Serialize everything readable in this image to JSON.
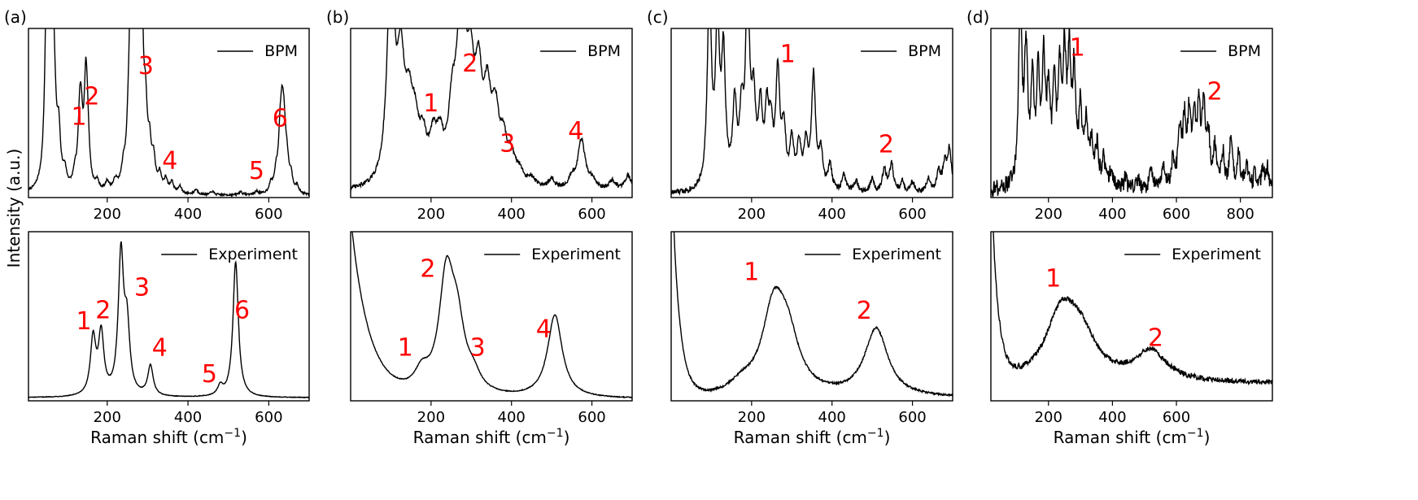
{
  "figure": {
    "ylabel": "Intensity (a.u.)",
    "xlabel_main": "Raman shift (cm",
    "xlabel_sup": "−1",
    "xlabel_close": ")"
  },
  "chart_data": [
    {
      "panel": "(a)",
      "type": "line",
      "xlim": [
        5,
        700
      ],
      "top": {
        "legend": "BPM",
        "legend_position": "top-right",
        "xticks": [
          200,
          400,
          600
        ],
        "peaks": [
          [
            50,
            9
          ],
          [
            58,
            16
          ],
          [
            64,
            7
          ],
          [
            70,
            2.2
          ],
          [
            80,
            2.8
          ],
          [
            95,
            0.9
          ],
          [
            120,
            0.8
          ],
          [
            132,
            3.8
          ],
          [
            136,
            2.5
          ],
          [
            147,
            6.0
          ],
          [
            152,
            2.2
          ],
          [
            175,
            0.5
          ],
          [
            200,
            0.5
          ],
          [
            220,
            0.5
          ],
          [
            240,
            0.8
          ],
          [
            252,
            1.2
          ],
          [
            260,
            12
          ],
          [
            264,
            8.5
          ],
          [
            272,
            7.5
          ],
          [
            280,
            9.5
          ],
          [
            286,
            6.0
          ],
          [
            295,
            3.5
          ],
          [
            305,
            2.0
          ],
          [
            315,
            1.5
          ],
          [
            330,
            0.9
          ],
          [
            345,
            0.7
          ],
          [
            360,
            0.6
          ],
          [
            380,
            0.4
          ],
          [
            420,
            0.3
          ],
          [
            460,
            0.2
          ],
          [
            530,
            0.2
          ],
          [
            570,
            0.2
          ],
          [
            605,
            0.5
          ],
          [
            618,
            1.0
          ],
          [
            628,
            2.5
          ],
          [
            633,
            3.5
          ],
          [
            638,
            2.8
          ],
          [
            645,
            1.5
          ],
          [
            655,
            0.9
          ],
          [
            670,
            0.4
          ]
        ],
        "width": 5,
        "baseline": 0.1,
        "noise": 0.06,
        "ylim": [
          0,
          10
        ],
        "labels": [
          {
            "text": "1",
            "x": 130,
            "y": 4.3
          },
          {
            "text": "2",
            "x": 162,
            "y": 5.5
          },
          {
            "text": "3",
            "x": 296,
            "y": 7.3
          },
          {
            "text": "4",
            "x": 355,
            "y": 1.7
          },
          {
            "text": "5",
            "x": 570,
            "y": 1.1
          },
          {
            "text": "6",
            "x": 628,
            "y": 4.2
          }
        ]
      },
      "bottom": {
        "legend": "Experiment",
        "legend_position": "top-right",
        "xticks": [
          200,
          400,
          600
        ],
        "peaks": [
          [
            165,
            1.5
          ],
          [
            185,
            1.6
          ],
          [
            234,
            3.7
          ],
          [
            249,
            1.7
          ],
          [
            307,
            0.8
          ],
          [
            480,
            0.25
          ],
          [
            518,
            3.6
          ]
        ],
        "width": 8,
        "baseline": 0.08,
        "noise": 0.008,
        "ylim": [
          0,
          4.5
        ],
        "labels": [
          {
            "text": "1",
            "x": 142,
            "y": 1.9
          },
          {
            "text": "2",
            "x": 190,
            "y": 2.2
          },
          {
            "text": "3",
            "x": 286,
            "y": 2.8
          },
          {
            "text": "4",
            "x": 330,
            "y": 1.2
          },
          {
            "text": "5",
            "x": 453,
            "y": 0.5
          },
          {
            "text": "6",
            "x": 534,
            "y": 2.2
          }
        ]
      }
    },
    {
      "panel": "(b)",
      "type": "line",
      "xlim": [
        0,
        700
      ],
      "top": {
        "legend": "BPM",
        "legend_position": "top-right",
        "xticks": [
          200,
          400,
          600
        ],
        "peaks": [
          [
            100,
            7
          ],
          [
            125,
            3.5
          ],
          [
            145,
            2.0
          ],
          [
            160,
            1.5
          ],
          [
            180,
            1.2
          ],
          [
            205,
            1.2
          ],
          [
            222,
            1.2
          ],
          [
            252,
            2.0
          ],
          [
            268,
            2.5
          ],
          [
            280,
            3.5
          ],
          [
            298,
            3.0
          ],
          [
            318,
            3.0
          ],
          [
            340,
            2.5
          ],
          [
            360,
            2.0
          ],
          [
            380,
            1.2
          ],
          [
            400,
            0.8
          ],
          [
            420,
            0.4
          ],
          [
            450,
            0.3
          ],
          [
            500,
            0.3
          ],
          [
            550,
            0.3
          ],
          [
            574,
            1.6
          ],
          [
            600,
            0.3
          ],
          [
            650,
            0.3
          ],
          [
            690,
            0.5
          ]
        ],
        "width": 11,
        "baseline": 0.15,
        "noise": 0.07,
        "ylim": [
          0,
          5.5
        ],
        "labels": [
          {
            "text": "1",
            "x": 200,
            "y": 2.8
          },
          {
            "text": "2",
            "x": 297,
            "y": 4.1
          },
          {
            "text": "3",
            "x": 390,
            "y": 1.5
          },
          {
            "text": "4",
            "x": 560,
            "y": 1.9
          }
        ]
      },
      "bottom": {
        "legend": "Experiment",
        "legend_position": "top-right",
        "xticks": [
          200,
          400,
          600
        ],
        "peaks": [
          [
            177,
            0.5
          ],
          [
            238,
            3.0
          ],
          [
            265,
            1.6
          ],
          [
            305,
            0.4
          ],
          [
            508,
            2.2
          ]
        ],
        "width": 22,
        "baseline": 0.05,
        "noise": 0.01,
        "rise": {
          "amp": 4.8,
          "decay": 45
        },
        "ylim": [
          0,
          4.5
        ],
        "labels": [
          {
            "text": "1",
            "x": 136,
            "y": 1.2
          },
          {
            "text": "2",
            "x": 192,
            "y": 3.3
          },
          {
            "text": "3",
            "x": 316,
            "y": 1.2
          },
          {
            "text": "4",
            "x": 480,
            "y": 1.7
          }
        ]
      }
    },
    {
      "panel": "(c)",
      "type": "line",
      "xlim": [
        0,
        700
      ],
      "top": {
        "legend": "BPM",
        "legend_position": "top-right",
        "xticks": [
          200,
          400,
          600
        ],
        "peaks": [
          [
            95,
            7
          ],
          [
            115,
            5.5
          ],
          [
            130,
            4.5
          ],
          [
            158,
            2.8
          ],
          [
            175,
            2.3
          ],
          [
            190,
            6.8
          ],
          [
            205,
            2.8
          ],
          [
            222,
            2.6
          ],
          [
            238,
            2.4
          ],
          [
            248,
            1.8
          ],
          [
            265,
            4.0
          ],
          [
            280,
            2.0
          ],
          [
            300,
            1.6
          ],
          [
            318,
            1.5
          ],
          [
            335,
            1.5
          ],
          [
            354,
            4.0
          ],
          [
            372,
            1.3
          ],
          [
            395,
            0.9
          ],
          [
            430,
            0.6
          ],
          [
            460,
            0.4
          ],
          [
            500,
            0.5
          ],
          [
            530,
            0.8
          ],
          [
            548,
            1.0
          ],
          [
            575,
            0.4
          ],
          [
            600,
            0.4
          ],
          [
            640,
            0.5
          ],
          [
            665,
            0.7
          ],
          [
            680,
            0.9
          ],
          [
            692,
            1.5
          ]
        ],
        "width": 6,
        "baseline": 0.1,
        "noise": 0.1,
        "ylim": [
          0,
          6
        ],
        "labels": [
          {
            "text": "1",
            "x": 290,
            "y": 4.8
          },
          {
            "text": "2",
            "x": 535,
            "y": 1.6
          }
        ]
      },
      "bottom": {
        "legend": "Experiment",
        "legend_position": "top-right",
        "xticks": [
          200,
          400,
          600
        ],
        "peaks": [
          [
            175,
            0.2
          ],
          [
            255,
            1.7
          ],
          [
            290,
            1.0
          ],
          [
            510,
            1.4
          ]
        ],
        "width": 35,
        "baseline": 0.05,
        "noise": 0.02,
        "rise": {
          "amp": 5,
          "decay": 18
        },
        "ylim": [
          0,
          3.5
        ],
        "labels": [
          {
            "text": "1",
            "x": 200,
            "y": 2.5
          },
          {
            "text": "2",
            "x": 480,
            "y": 1.7
          }
        ]
      }
    },
    {
      "panel": "(d)",
      "type": "line",
      "xlim": [
        20,
        900
      ],
      "top": {
        "legend": "BPM",
        "legend_position": "top-right",
        "xticks": [
          200,
          400,
          600,
          800
        ],
        "peaks": [
          [
            112,
            5.5
          ],
          [
            130,
            3.8
          ],
          [
            150,
            2.8
          ],
          [
            168,
            3.0
          ],
          [
            185,
            3.4
          ],
          [
            200,
            2.4
          ],
          [
            218,
            2.6
          ],
          [
            235,
            3.0
          ],
          [
            250,
            3.5
          ],
          [
            265,
            3.5
          ],
          [
            280,
            3.0
          ],
          [
            300,
            2.2
          ],
          [
            318,
            1.8
          ],
          [
            335,
            1.2
          ],
          [
            352,
            1.1
          ],
          [
            372,
            0.8
          ],
          [
            395,
            0.5
          ],
          [
            440,
            0.3
          ],
          [
            480,
            0.3
          ],
          [
            520,
            0.5
          ],
          [
            560,
            0.6
          ],
          [
            590,
            0.8
          ],
          [
            610,
            1.6
          ],
          [
            625,
            1.8
          ],
          [
            640,
            2.0
          ],
          [
            655,
            1.9
          ],
          [
            670,
            2.1
          ],
          [
            685,
            2.2
          ],
          [
            700,
            1.4
          ],
          [
            720,
            1.1
          ],
          [
            745,
            1.0
          ],
          [
            770,
            1.3
          ],
          [
            795,
            1.0
          ],
          [
            820,
            0.6
          ],
          [
            845,
            0.4
          ],
          [
            870,
            0.5
          ],
          [
            885,
            0.6
          ]
        ],
        "width": 6,
        "baseline": 0.2,
        "noise": 0.25,
        "ylim": [
          0,
          5
        ],
        "labels": [
          {
            "text": "1",
            "x": 290,
            "y": 4.2
          },
          {
            "text": "2",
            "x": 720,
            "y": 2.9
          }
        ]
      },
      "bottom": {
        "legend": "Experiment",
        "legend_position": "top-right",
        "xticks": [
          200,
          400,
          600
        ],
        "peaks": [
          [
            240,
            0.75
          ],
          [
            300,
            0.45
          ],
          [
            520,
            0.35
          ]
        ],
        "width": 60,
        "baseline": 0.2,
        "noise": 0.03,
        "rise": {
          "amp": 2.5,
          "decay": 20
        },
        "ylim": [
          0,
          2
        ],
        "labels": [
          {
            "text": "1",
            "x": 215,
            "y": 1.35
          },
          {
            "text": "2",
            "x": 535,
            "y": 0.65
          }
        ]
      }
    }
  ]
}
